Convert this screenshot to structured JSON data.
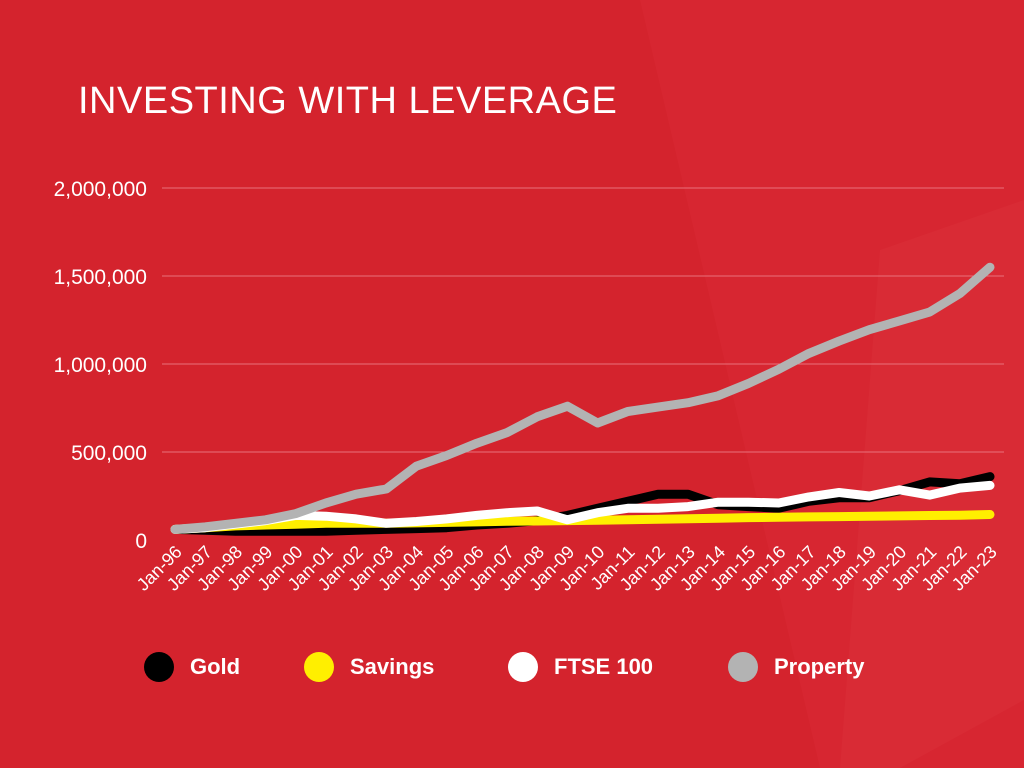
{
  "title": "INVESTING WITH LEVERAGE",
  "colors": {
    "background": "#d4232d",
    "grid": "#e9707a",
    "text": "#ffffff"
  },
  "chart_data": {
    "type": "line",
    "title": "INVESTING WITH LEVERAGE",
    "xlabel": "",
    "ylabel": "",
    "ylim": [
      0,
      2000000
    ],
    "yticks": [
      "0",
      "500,000",
      "1,000,000",
      "1,500,000",
      "2,000,000"
    ],
    "ytick_values": [
      0,
      500000,
      1000000,
      1500000,
      2000000
    ],
    "grid": true,
    "legend_position": "bottom",
    "categories": [
      "Jan-96",
      "Jan-97",
      "Jan-98",
      "Jan-99",
      "Jan-00",
      "Jan-01",
      "Jan-02",
      "Jan-03",
      "Jan-04",
      "Jan-05",
      "Jan-06",
      "Jan-07",
      "Jan-08",
      "Jan-09",
      "Jan-10",
      "Jan-11",
      "Jan-12",
      "Jan-13",
      "Jan-14",
      "Jan-15",
      "Jan-16",
      "Jan-17",
      "Jan-18",
      "Jan-19",
      "Jan-20",
      "Jan-21",
      "Jan-22",
      "Jan-23"
    ],
    "series": [
      {
        "name": "Gold",
        "color": "#000000",
        "values": [
          60000,
          55000,
          50000,
          50000,
          50000,
          50000,
          55000,
          60000,
          65000,
          70000,
          85000,
          95000,
          110000,
          140000,
          180000,
          220000,
          260000,
          260000,
          200000,
          190000,
          180000,
          220000,
          240000,
          240000,
          280000,
          330000,
          320000,
          360000
        ]
      },
      {
        "name": "Savings",
        "color": "#ffef00",
        "values": [
          60000,
          70000,
          80000,
          85000,
          90000,
          95000,
          95000,
          95000,
          97000,
          100000,
          103000,
          106000,
          108000,
          110000,
          112000,
          115000,
          118000,
          121000,
          124000,
          127000,
          129000,
          131000,
          133000,
          135000,
          137000,
          139000,
          141000,
          145000
        ]
      },
      {
        "name": "FTSE 100",
        "color": "#ffffff",
        "values": [
          60000,
          70000,
          90000,
          110000,
          140000,
          135000,
          120000,
          95000,
          105000,
          120000,
          140000,
          155000,
          165000,
          115000,
          155000,
          180000,
          180000,
          190000,
          215000,
          215000,
          210000,
          245000,
          270000,
          250000,
          285000,
          255000,
          295000,
          310000
        ]
      },
      {
        "name": "Property",
        "color": "#b3b3b3",
        "values": [
          60000,
          75000,
          95000,
          115000,
          150000,
          210000,
          260000,
          290000,
          420000,
          480000,
          550000,
          610000,
          700000,
          760000,
          665000,
          730000,
          755000,
          780000,
          820000,
          890000,
          970000,
          1060000,
          1130000,
          1195000,
          1245000,
          1295000,
          1400000,
          1550000
        ]
      }
    ]
  }
}
